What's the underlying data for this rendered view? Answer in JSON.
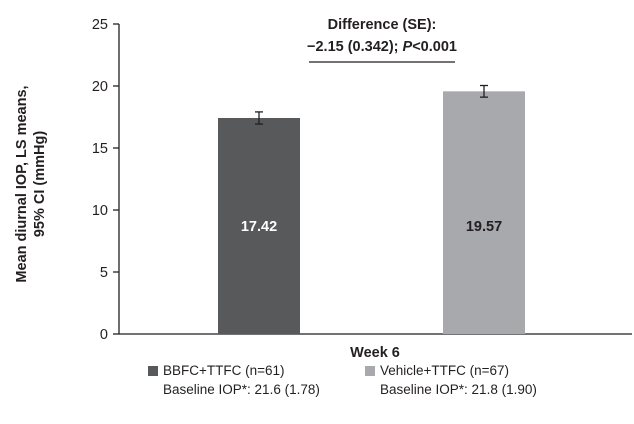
{
  "chart_data": {
    "type": "bar",
    "categories": [
      "BBFC+TTFC (n=61)",
      "Vehicle+TTFC (n=67)"
    ],
    "values": [
      17.42,
      19.57
    ],
    "value_labels": [
      "17.42",
      "19.57"
    ],
    "error_bars": [
      [
        16.93,
        17.91
      ],
      [
        19.1,
        20.04
      ]
    ],
    "bar_colors": [
      "#58595b",
      "#a7a9ac"
    ],
    "value_label_colors": [
      "#ffffff",
      "#231f20"
    ],
    "xlabel": "Week 6",
    "ylabel": "Mean diurnal IOP, LS means, 95% CI (mmHg)",
    "ylabel_lines": [
      "Mean diurnal IOP, LS means,",
      "95% CI (mmHg)"
    ],
    "ylim": [
      0,
      25
    ],
    "yticks": [
      0,
      5,
      10,
      15,
      20,
      25
    ],
    "annotation": {
      "line1": "Difference (SE):",
      "line2_prefix": "−2.15 (0.342); ",
      "line2_p": "P",
      "line2_suffix": "<0.001"
    },
    "legend_position": "bottom",
    "legend": [
      {
        "label": "BBFC+TTFC (n=61)",
        "sublabel": "Baseline IOP*: 21.6 (1.78)",
        "color": "#58595b"
      },
      {
        "label": "Vehicle+TTFC (n=67)",
        "sublabel": "Baseline IOP*: 21.8 (1.90)",
        "color": "#a7a9ac"
      }
    ],
    "grid": false
  }
}
